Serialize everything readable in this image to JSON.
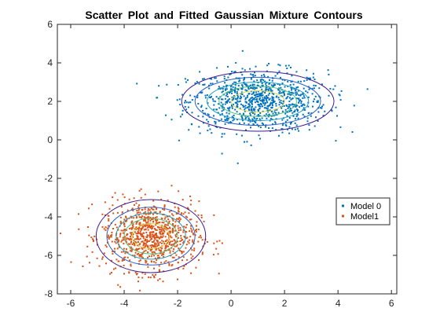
{
  "chart_data": {
    "type": "scatter",
    "title": "Scatter Plot and Fitted Gaussian Mixture Contours",
    "xlabel": "",
    "ylabel": "",
    "xlim": [
      -6.5,
      6.2
    ],
    "ylim": [
      -8,
      6
    ],
    "xticks": [
      -6,
      -4,
      -2,
      0,
      2,
      4,
      6
    ],
    "yticks": [
      -8,
      -6,
      -4,
      -2,
      0,
      2,
      4,
      6
    ],
    "grid": false,
    "legend_position": "right-middle",
    "series": [
      {
        "name": "Model 0",
        "color": "#0072BD",
        "center": [
          1.0,
          2.0
        ],
        "spread": [
          1.3,
          0.8
        ],
        "count": 900
      },
      {
        "name": "Model1",
        "color": "#D95319",
        "center": [
          -3.0,
          -5.0
        ],
        "spread": [
          0.9,
          0.9
        ],
        "count": 900
      }
    ],
    "contours": [
      {
        "center": [
          1.0,
          2.0
        ],
        "radii_x": [
          2.85,
          2.35,
          1.9,
          1.45,
          1.0
        ],
        "radii_y": [
          1.55,
          1.25,
          1.0,
          0.78,
          0.55
        ],
        "colors": [
          "#3d1a8f",
          "#2a5fc7",
          "#1f9fbf",
          "#55c27d",
          "#d9d94a"
        ]
      },
      {
        "center": [
          -3.0,
          -5.0
        ],
        "radii_x": [
          2.05,
          1.65,
          1.3,
          1.0,
          0.7
        ],
        "radii_y": [
          1.9,
          1.5,
          1.2,
          0.92,
          0.65
        ],
        "colors": [
          "#3d1a8f",
          "#2a5fc7",
          "#1f9fbf",
          "#55c27d",
          "#d9d94a"
        ]
      }
    ]
  }
}
